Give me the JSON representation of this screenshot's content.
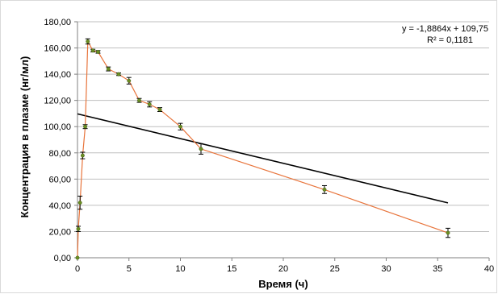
{
  "chart_data": {
    "type": "scatter",
    "title": "",
    "xlabel": "Время (ч)",
    "ylabel": "Концентрация в плазме (нг/мл)",
    "xlim": [
      0,
      40
    ],
    "ylim": [
      0,
      180
    ],
    "x_ticks": [
      "0",
      "5",
      "10",
      "15",
      "20",
      "25",
      "30",
      "35",
      "40"
    ],
    "y_ticks": [
      "0,00",
      "20,00",
      "40,00",
      "60,00",
      "80,00",
      "100,00",
      "120,00",
      "140,00",
      "160,00",
      "180,00"
    ],
    "grid": "horizontal",
    "series": [
      {
        "color": "#e8743b",
        "marker_color": "#6b8e23",
        "x": [
          0,
          0.08,
          0.25,
          0.5,
          0.75,
          1,
          1.5,
          2,
          3,
          4,
          5,
          6,
          7,
          8,
          10,
          12,
          24,
          36
        ],
        "y": [
          0,
          22,
          42,
          78,
          100,
          165,
          158,
          157,
          144,
          140,
          135,
          120,
          117,
          113,
          100,
          83,
          52,
          19
        ],
        "errors": [
          0,
          2,
          5,
          2.5,
          1.5,
          2,
          1,
          1,
          1.5,
          1,
          2.5,
          1.5,
          2,
          1.5,
          2.5,
          4,
          3,
          3.5
        ]
      }
    ],
    "trendline": {
      "slope": -1.8864,
      "intercept": 109.75,
      "x_range": [
        0,
        36
      ],
      "color": "#000000",
      "equation": "y = -1,8864x + 109,75",
      "r_squared": "R² = 0,1181"
    }
  }
}
